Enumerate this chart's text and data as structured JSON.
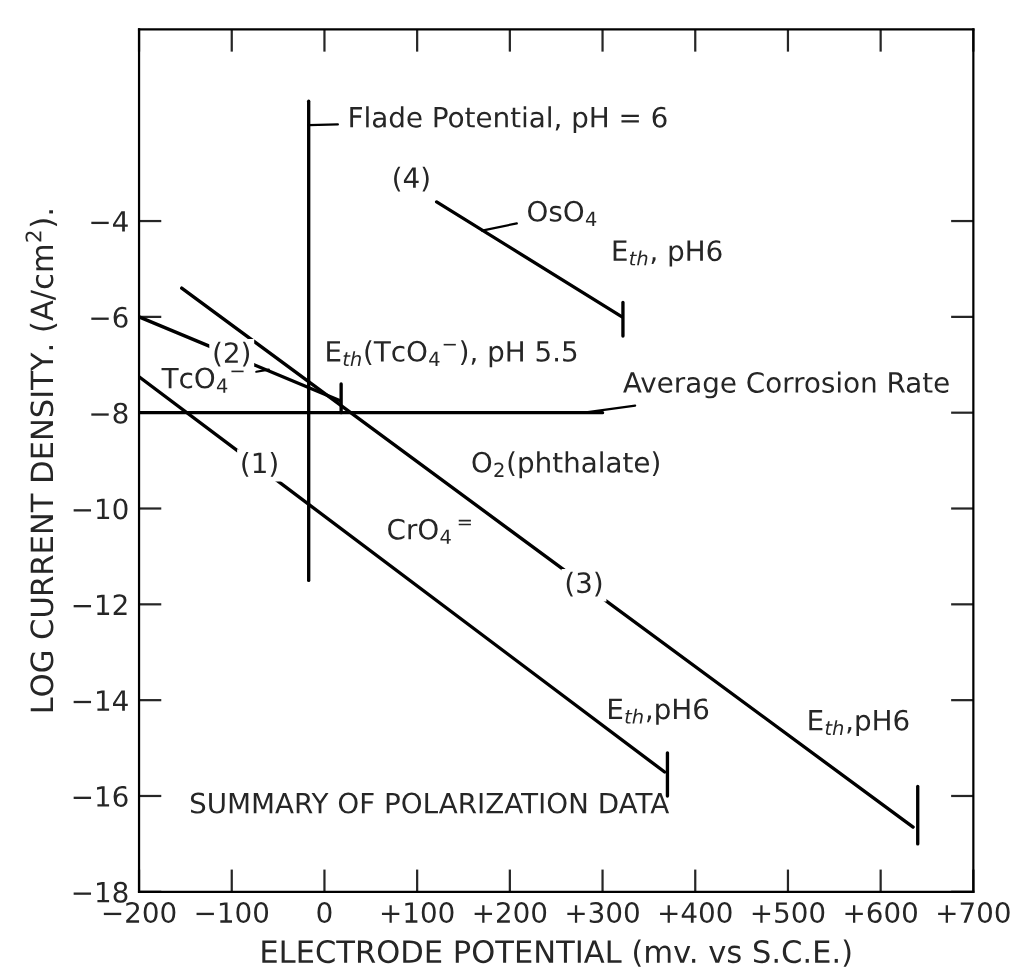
{
  "chart_data": {
    "type": "line",
    "xlabel": "ELECTRODE POTENTIAL (mv. vs S.C.E.)",
    "ylabel": "LOG CURRENT DENSITY. (A/cm$^{2}$).",
    "xlim": [
      -200,
      700
    ],
    "ylim": [
      -18,
      0
    ],
    "xticks": [
      {
        "value": -200,
        "label": "−200"
      },
      {
        "value": -100,
        "label": "−100"
      },
      0,
      {
        "value": 100,
        "label": "+100"
      },
      {
        "value": 200,
        "label": "+200"
      },
      {
        "value": 300,
        "label": "+300"
      },
      {
        "value": 400,
        "label": "+400"
      },
      {
        "value": 500,
        "label": "+500"
      },
      {
        "value": 600,
        "label": "+600"
      },
      {
        "value": 700,
        "label": "+700"
      }
    ],
    "yticks": [
      {
        "value": -18,
        "label": "−18"
      },
      {
        "value": -16,
        "label": "−16"
      },
      {
        "value": -14,
        "label": "−14"
      },
      {
        "value": -12,
        "label": "−12"
      },
      {
        "value": -10,
        "label": "−10"
      },
      {
        "value": -8,
        "label": "−8"
      },
      {
        "value": -6,
        "label": "−6"
      },
      {
        "value": -4,
        "label": "−4"
      }
    ],
    "grid": false,
    "legend": false,
    "series": [
      {
        "color": "#000000",
        "x": [
          -200,
          367
        ],
        "values": [
          -7.25,
          -15.5
        ]
      },
      {
        "color": "#000000",
        "x": [
          -200,
          17
        ],
        "values": [
          -6.0,
          -7.75
        ]
      },
      {
        "color": "#000000",
        "x": [
          -154,
          635
        ],
        "values": [
          -5.4,
          -16.65
        ]
      },
      {
        "color": "#000000",
        "x": [
          121,
          321
        ],
        "values": [
          -3.6,
          -6.0
        ]
      },
      {
        "color": "#000000",
        "x": [
          -17,
          -17
        ],
        "values": [
          -1.5,
          -11.5
        ]
      },
      {
        "color": "#000000",
        "x": [
          -200,
          300
        ],
        "values": [
          -8.0,
          -8.0
        ]
      },
      {
        "color": "#000000",
        "x": [
          370,
          370
        ],
        "values": [
          -15.1,
          -16.0
        ]
      },
      {
        "color": "#000000",
        "x": [
          640,
          640
        ],
        "values": [
          -15.8,
          -17.0
        ]
      },
      {
        "color": "#000000",
        "x": [
          322,
          322
        ],
        "values": [
          -5.7,
          -6.4
        ]
      },
      {
        "color": "#000000",
        "x": [
          18,
          18
        ],
        "values": [
          -7.4,
          -8.0
        ]
      }
    ],
    "annotations": [
      {
        "text": "Flade Potential, pH = 6",
        "x": -17,
        "y": -2.0
      },
      {
        "text": "(4)",
        "x": 121,
        "y": -3.6
      },
      {
        "text": "OsO$_{4}$",
        "x": 170,
        "y": -4.2
      },
      {
        "text": "E$_{th}$, pH6",
        "x": 321,
        "y": -6.0
      },
      {
        "text": "(2)",
        "x": -100,
        "y": -6.8
      },
      {
        "text": "E$_{th}$(TcO$_{4}$$^{−}$), pH 5.5",
        "x": 18,
        "y": -7.4
      },
      {
        "text": "TcO$_{4}$$^{−}$",
        "x": -60,
        "y": -7.1
      },
      {
        "text": "Average Corrosion Rate",
        "x": 280,
        "y": -8.0
      },
      {
        "text": "(1)",
        "x": -70,
        "y": -9.1
      },
      {
        "text": "O$_{2}$(phthalate)",
        "x": 140,
        "y": -9.6
      },
      {
        "text": "CrO$_{4}$$^{=}$",
        "x": 55,
        "y": -11.0
      },
      {
        "text": "(3)",
        "x": 280,
        "y": -11.6
      },
      {
        "text": "E$_{th}$,pH6",
        "x": 370,
        "y": -15.1
      },
      {
        "text": "E$_{th}$,pH6",
        "x": 640,
        "y": -15.8
      },
      "SUMMARY OF POLARIZATION DATA"
    ]
  }
}
